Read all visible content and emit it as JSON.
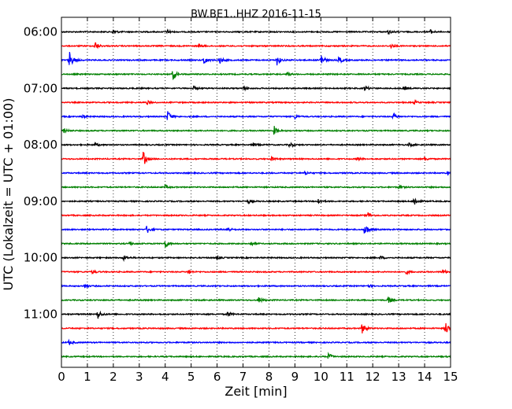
{
  "chart_data": {
    "type": "line",
    "title": "BW.BE1..HHZ 2016-11-15",
    "xlabel": "Zeit  [min]",
    "ylabel": "UTC (Lokalzeit = UTC + 01:00)",
    "xlim": [
      0,
      15
    ],
    "x_ticks": [
      "0",
      "1",
      "2",
      "3",
      "4",
      "5",
      "6",
      "7",
      "8",
      "9",
      "10",
      "11",
      "12",
      "13",
      "14",
      "15"
    ],
    "y_ticks": [
      "06:00",
      "07:00",
      "08:00",
      "09:00",
      "10:00",
      "11:00"
    ],
    "grid": "vertical dotted",
    "trace_colors": [
      "#000000",
      "#ff0000",
      "#0000ff",
      "#008000"
    ],
    "traces": [
      {
        "start": "06:00",
        "events": [
          {
            "t": 2.0,
            "amp": 0.4
          },
          {
            "t": 4.1,
            "amp": 0.3
          },
          {
            "t": 12.6,
            "amp": 0.35
          },
          {
            "t": 14.2,
            "amp": 0.4
          }
        ]
      },
      {
        "start": "06:15",
        "events": [
          {
            "t": 1.3,
            "amp": 0.7
          },
          {
            "t": 5.3,
            "amp": 0.3
          },
          {
            "t": 12.7,
            "amp": 0.3
          }
        ]
      },
      {
        "start": "06:30",
        "events": [
          {
            "t": 0.3,
            "amp": 1.5
          },
          {
            "t": 5.5,
            "amp": 0.8
          },
          {
            "t": 6.1,
            "amp": 0.6
          },
          {
            "t": 8.3,
            "amp": 0.9
          },
          {
            "t": 10.0,
            "amp": 1.2
          },
          {
            "t": 10.7,
            "amp": 0.6
          }
        ]
      },
      {
        "start": "06:45",
        "events": [
          {
            "t": 4.3,
            "amp": 0.9
          },
          {
            "t": 8.7,
            "amp": 0.3
          }
        ]
      },
      {
        "start": "07:00",
        "events": [
          {
            "t": 5.1,
            "amp": 0.3
          },
          {
            "t": 7.0,
            "amp": 0.35
          },
          {
            "t": 11.7,
            "amp": 0.45
          },
          {
            "t": 13.2,
            "amp": 0.35
          }
        ]
      },
      {
        "start": "07:15",
        "events": [
          {
            "t": 3.3,
            "amp": 0.3
          },
          {
            "t": 13.6,
            "amp": 0.3
          }
        ]
      },
      {
        "start": "07:30",
        "events": [
          {
            "t": 0.8,
            "amp": 0.3
          },
          {
            "t": 4.1,
            "amp": 1.0
          },
          {
            "t": 9.0,
            "amp": 0.3
          },
          {
            "t": 12.8,
            "amp": 0.5
          }
        ]
      },
      {
        "start": "07:45",
        "events": [
          {
            "t": 0.1,
            "amp": 0.35
          },
          {
            "t": 8.2,
            "amp": 0.7
          }
        ]
      },
      {
        "start": "08:00",
        "events": [
          {
            "t": 1.3,
            "amp": 0.3
          },
          {
            "t": 7.4,
            "amp": 0.3
          },
          {
            "t": 8.8,
            "amp": 0.4
          },
          {
            "t": 13.4,
            "amp": 0.3
          }
        ]
      },
      {
        "start": "08:15",
        "events": [
          {
            "t": 3.15,
            "amp": 1.3
          },
          {
            "t": 8.1,
            "amp": 0.35
          },
          {
            "t": 11.4,
            "amp": 0.3
          },
          {
            "t": 14.0,
            "amp": 0.3
          }
        ]
      },
      {
        "start": "08:30",
        "events": [
          {
            "t": 9.4,
            "amp": 0.3
          },
          {
            "t": 14.9,
            "amp": 0.3
          }
        ]
      },
      {
        "start": "08:45",
        "events": [
          {
            "t": 4.0,
            "amp": 0.3
          },
          {
            "t": 13.0,
            "amp": 0.3
          }
        ]
      },
      {
        "start": "09:00",
        "events": [
          {
            "t": 7.2,
            "amp": 0.35
          },
          {
            "t": 9.9,
            "amp": 0.45
          },
          {
            "t": 13.6,
            "amp": 0.8
          }
        ]
      },
      {
        "start": "09:15",
        "events": [
          {
            "t": 11.8,
            "amp": 0.6
          }
        ]
      },
      {
        "start": "09:30",
        "events": [
          {
            "t": 3.3,
            "amp": 0.7
          },
          {
            "t": 6.4,
            "amp": 0.4
          },
          {
            "t": 11.7,
            "amp": 1.2
          }
        ]
      },
      {
        "start": "09:45",
        "events": [
          {
            "t": 2.6,
            "amp": 0.35
          },
          {
            "t": 4.0,
            "amp": 0.7
          },
          {
            "t": 7.3,
            "amp": 0.3
          }
        ]
      },
      {
        "start": "10:00",
        "events": [
          {
            "t": 2.4,
            "amp": 0.4
          },
          {
            "t": 6.0,
            "amp": 0.3
          },
          {
            "t": 12.3,
            "amp": 0.3
          }
        ]
      },
      {
        "start": "10:15",
        "events": [
          {
            "t": 1.2,
            "amp": 0.3
          },
          {
            "t": 4.9,
            "amp": 0.35
          },
          {
            "t": 13.3,
            "amp": 0.3
          },
          {
            "t": 14.7,
            "amp": 0.35
          }
        ]
      },
      {
        "start": "10:30",
        "events": [
          {
            "t": 0.9,
            "amp": 0.3
          },
          {
            "t": 11.8,
            "amp": 0.3
          }
        ]
      },
      {
        "start": "10:45",
        "events": [
          {
            "t": 7.6,
            "amp": 0.55
          },
          {
            "t": 12.6,
            "amp": 0.55
          }
        ]
      },
      {
        "start": "11:00",
        "events": [
          {
            "t": 1.4,
            "amp": 0.8
          },
          {
            "t": 6.4,
            "amp": 0.45
          }
        ]
      },
      {
        "start": "11:15",
        "events": [
          {
            "t": 11.6,
            "amp": 0.9
          },
          {
            "t": 14.8,
            "amp": 1.1
          }
        ]
      },
      {
        "start": "11:30",
        "events": [
          {
            "t": 0.3,
            "amp": 0.35
          }
        ]
      },
      {
        "start": "11:45",
        "events": [
          {
            "t": 10.3,
            "amp": 0.55
          }
        ]
      }
    ]
  }
}
